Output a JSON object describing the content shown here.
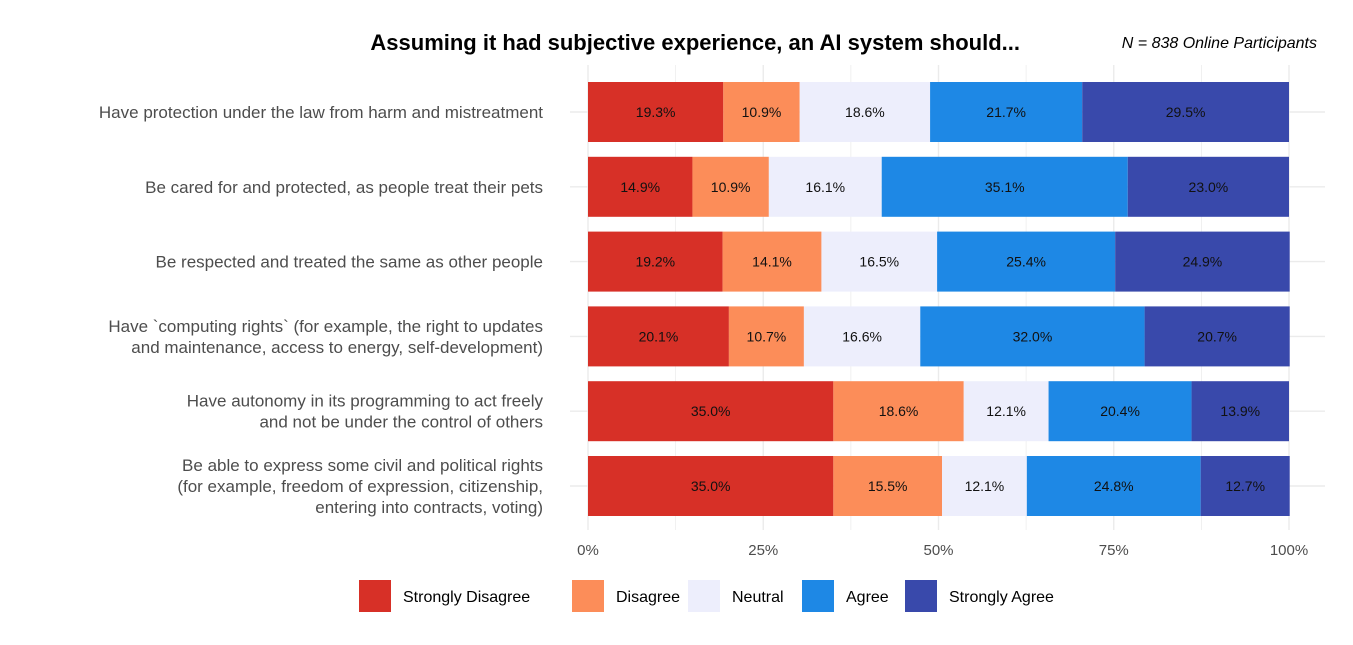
{
  "chart_data": {
    "type": "bar",
    "orientation": "horizontal",
    "stacked": true,
    "title": "Assuming it had subjective experience, an AI system should...",
    "subtitle": "N = 838 Online Participants",
    "xlabel": "",
    "ylabel": "",
    "xlim": [
      0,
      100
    ],
    "x_ticks": [
      "0%",
      "25%",
      "50%",
      "75%",
      "100%"
    ],
    "x_tick_values": [
      0,
      25,
      50,
      75,
      100
    ],
    "grid": true,
    "legend_position": "bottom",
    "categories": [
      "Have protection under the law from harm and mistreatment",
      "Be cared for and protected, as people treat their pets",
      "Be respected and treated the same as other people",
      "Have `computing rights` (for example, the right to updates\nand maintenance, access to energy, self-development)",
      "Have autonomy in its programming to act freely\nand not be under the control of others",
      "Be able to express some civil and political rights\n(for example, freedom of expression, citizenship,\nentering into contracts, voting)"
    ],
    "series": [
      {
        "name": "Strongly Disagree",
        "color": "#D73027",
        "values": [
          19.3,
          14.9,
          19.2,
          20.1,
          35.0,
          35.0
        ]
      },
      {
        "name": "Disagree",
        "color": "#FC8D59",
        "values": [
          10.9,
          10.9,
          14.1,
          10.7,
          18.6,
          15.5
        ]
      },
      {
        "name": "Neutral",
        "color": "#EDEEFC",
        "values": [
          18.6,
          16.1,
          16.5,
          16.6,
          12.1,
          12.1
        ]
      },
      {
        "name": "Agree",
        "color": "#1E88E5",
        "values": [
          21.7,
          35.1,
          25.4,
          32.0,
          20.4,
          24.8
        ]
      },
      {
        "name": "Strongly Agree",
        "color": "#3949AB",
        "values": [
          29.5,
          23.0,
          24.9,
          20.7,
          13.9,
          12.7
        ]
      }
    ]
  }
}
